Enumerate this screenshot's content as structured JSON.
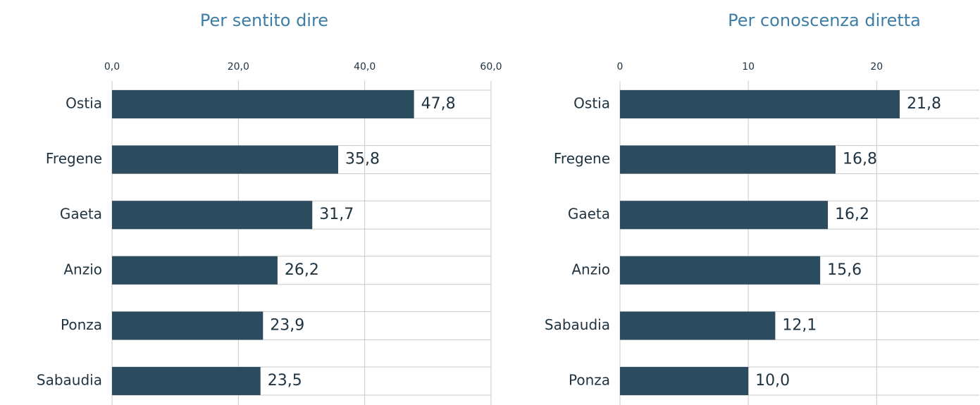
{
  "chart_data": [
    {
      "type": "hbar",
      "title": "Per sentito dire",
      "categories": [
        "Ostia",
        "Fregene",
        "Gaeta",
        "Anzio",
        "Ponza",
        "Sabaudia"
      ],
      "values": [
        47.8,
        35.8,
        31.7,
        26.2,
        23.9,
        23.5
      ],
      "value_labels": [
        "47,8",
        "35,8",
        "31,7",
        "26,2",
        "23,9",
        "23,5"
      ],
      "color": "#2b4c5e",
      "xlim": [
        0,
        60
      ],
      "xticks": [
        {
          "value": 0,
          "label": "0,0"
        },
        {
          "value": 20,
          "label": "20,0"
        },
        {
          "value": 40,
          "label": "40,0"
        },
        {
          "value": 60,
          "label": "60,0"
        }
      ],
      "grid": true
    },
    {
      "type": "hbar",
      "title": "Per conoscenza diretta",
      "categories": [
        "Ostia",
        "Fregene",
        "Gaeta",
        "Anzio",
        "Sabaudia",
        "Ponza"
      ],
      "values": [
        21.8,
        16.8,
        16.2,
        15.6,
        12.1,
        10.0
      ],
      "value_labels": [
        "21,8",
        "16,8",
        "16,2",
        "15,6",
        "12,1",
        "10,0"
      ],
      "color": "#2b4c5e",
      "xlim": [
        0,
        28
      ],
      "xticks": [
        0,
        10,
        20
      ],
      "grid": true
    }
  ]
}
